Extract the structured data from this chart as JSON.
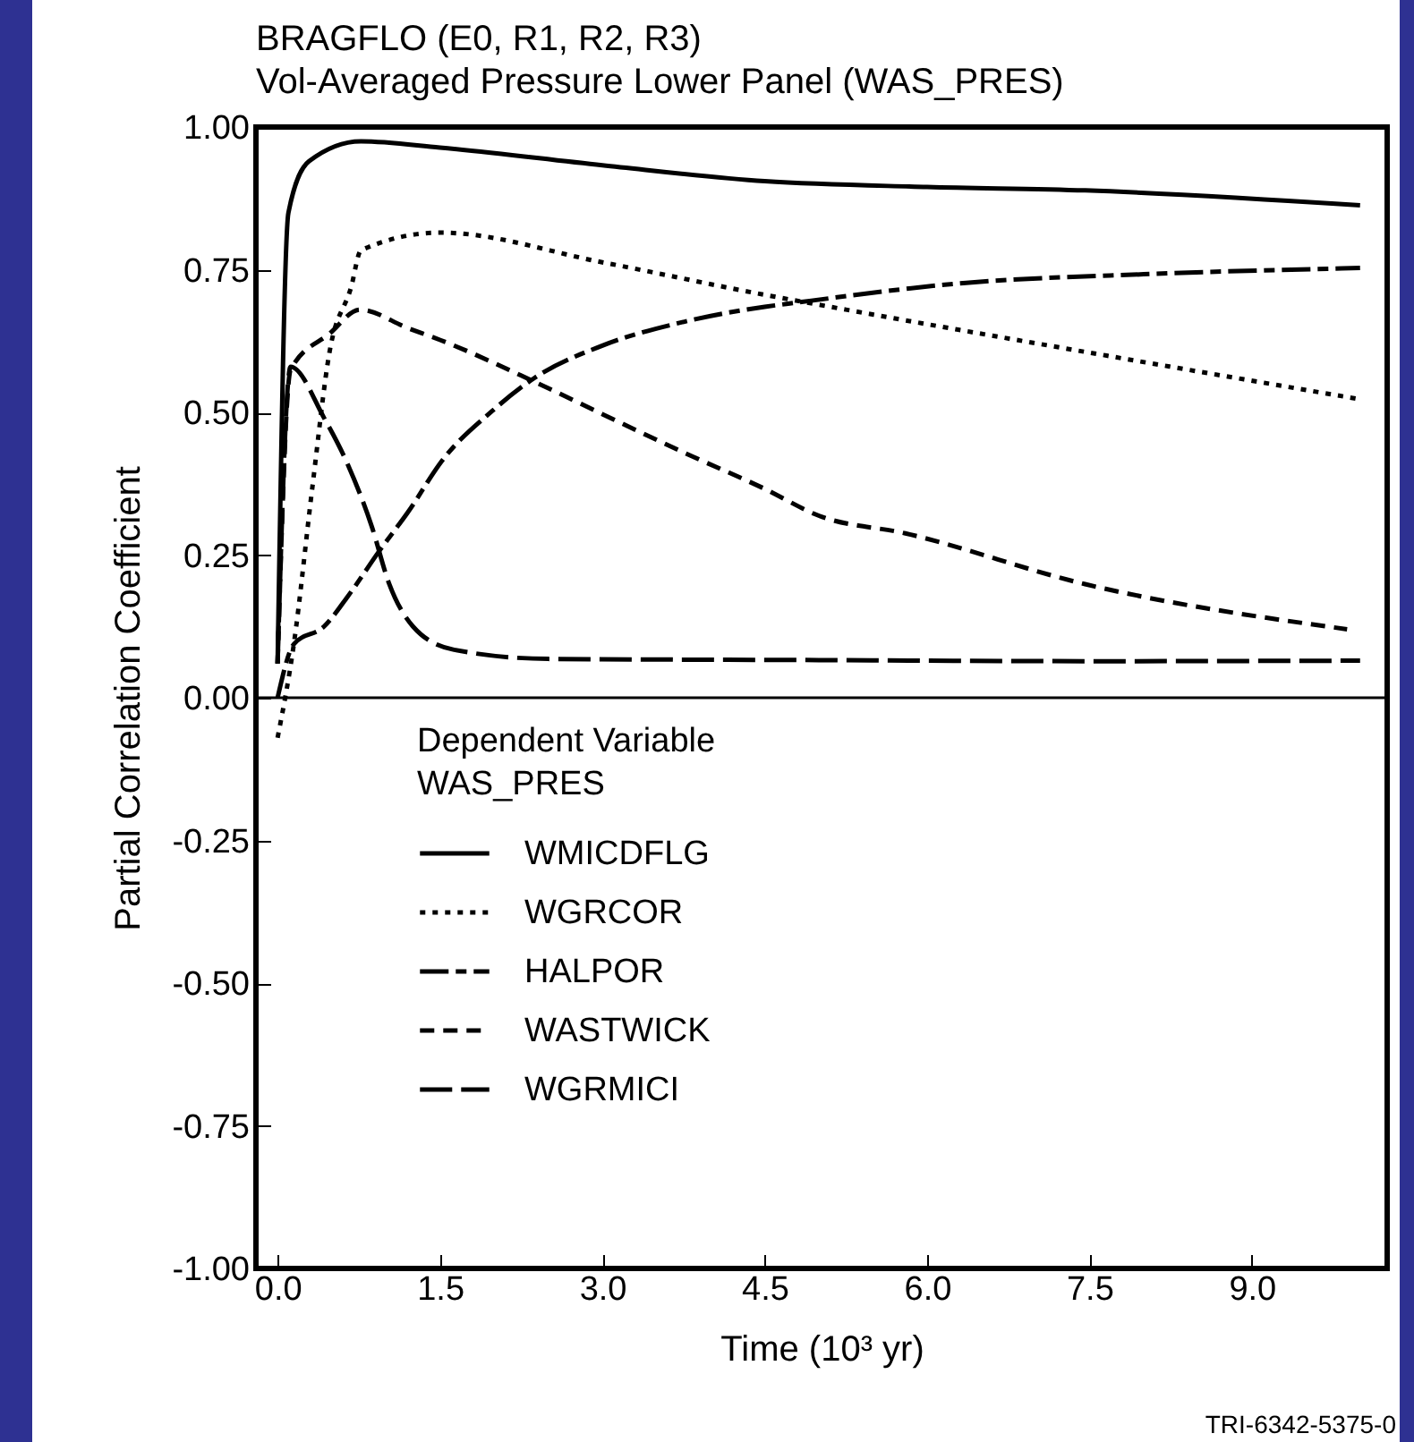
{
  "chart_data": {
    "type": "line",
    "title": "BRAGFLO (E0, R1, R2, R3)",
    "subtitle": "Vol-Averaged Pressure Lower Panel (WAS_PRES)",
    "xlabel": "Time (10³ yr)",
    "ylabel": "Partial Correlation Coefficient",
    "legend_title": "Dependent Variable\nWAS_PRES",
    "annotations": [
      "TRI-6342-5375-0"
    ],
    "xlim": [
      -0.2,
      10.25
    ],
    "ylim": [
      -1,
      1
    ],
    "xticks": [
      {
        "value": 0,
        "label": "0.0"
      },
      1.5,
      {
        "value": 3,
        "label": "3.0"
      },
      4.5,
      {
        "value": 6,
        "label": "6.0"
      },
      7.5,
      {
        "value": 9,
        "label": "9.0"
      }
    ],
    "yticks": [
      {
        "value": -1,
        "label": "-1.00"
      },
      -0.75,
      {
        "value": -0.5,
        "label": "-0.50"
      },
      -0.25,
      {
        "value": 0,
        "label": "0.00"
      },
      0.25,
      {
        "value": 0.5,
        "label": "0.50"
      },
      0.75,
      {
        "value": 1,
        "label": "1.00"
      }
    ],
    "grid": false,
    "legend": "bottom left",
    "marker": "none",
    "ref_lines": [
      {
        "axis": "y",
        "value": 0,
        "color": "#000000",
        "line_style": "solid"
      }
    ],
    "series": [
      {
        "name": "WMICDFLG",
        "color": "#000000",
        "line_style": "solid",
        "x": [
          0,
          0.1,
          0.29,
          0.77,
          1.5,
          3.0,
          4.5,
          6.0,
          7.46,
          10.0
        ],
        "values": [
          0.06,
          0.85,
          0.94,
          0.975,
          0.964,
          0.933,
          0.905,
          0.895,
          0.889,
          0.863
        ]
      },
      {
        "name": "WGRCOR",
        "color": "#000000",
        "line_style": "dotted",
        "x": [
          0,
          0.15,
          0.32,
          0.48,
          0.68,
          0.77,
          1.5,
          3.0,
          4.5,
          5.25,
          7.46,
          10.0
        ],
        "values": [
          -0.07,
          0.094,
          0.367,
          0.606,
          0.72,
          0.784,
          0.815,
          0.763,
          0.706,
          0.68,
          0.606,
          0.523
        ]
      },
      {
        "name": "HALPOR",
        "color": "#000000",
        "line_style": "dashed",
        "x": [
          0,
          0.15,
          0.43,
          0.65,
          0.95,
          1.2,
          1.53,
          1.98,
          2.37,
          3.0,
          3.76,
          4.5,
          4.7,
          6.36,
          8.0,
          10.0
        ],
        "values": [
          0,
          0.094,
          0.125,
          0.178,
          0.26,
          0.324,
          0.418,
          0.502,
          0.56,
          0.617,
          0.659,
          0.685,
          0.69,
          0.727,
          0.742,
          0.753
        ]
      },
      {
        "name": "WASTWICK",
        "color": "#000000",
        "line_style": "dashed",
        "x": [
          0,
          0.12,
          0.48,
          0.76,
          1.2,
          1.5,
          2.37,
          3.0,
          3.76,
          4.5,
          5.0,
          5.8,
          7.46,
          9.88
        ],
        "values": [
          0.06,
          0.575,
          0.638,
          0.68,
          0.648,
          0.627,
          0.554,
          0.497,
          0.429,
          0.366,
          0.319,
          0.288,
          0.199,
          0.12
        ]
      },
      {
        "name": "WGRMICI",
        "color": "#000000",
        "line_style": "dashed",
        "x": [
          0,
          0.12,
          0.43,
          0.65,
          0.87,
          1.03,
          1.25,
          1.63,
          2.5,
          5.0,
          7.5,
          10.0
        ],
        "values": [
          0.06,
          0.58,
          0.49,
          0.408,
          0.3,
          0.2,
          0.125,
          0.084,
          0.068,
          0.066,
          0.064,
          0.065
        ]
      }
    ]
  }
}
